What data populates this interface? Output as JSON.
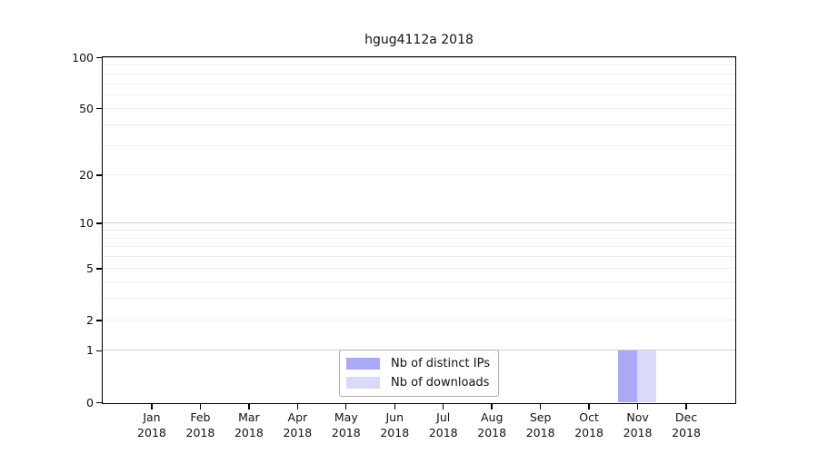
{
  "chart_data": {
    "type": "bar",
    "title": "hgug4112a 2018",
    "categories": [
      "Jan 2018",
      "Feb 2018",
      "Mar 2018",
      "Apr 2018",
      "May 2018",
      "Jun 2018",
      "Jul 2018",
      "Aug 2018",
      "Sep 2018",
      "Oct 2018",
      "Nov 2018",
      "Dec 2018"
    ],
    "series": [
      {
        "name": "Nb of distinct IPs",
        "color": "#a9a9f5",
        "values": [
          0,
          0,
          0,
          0,
          0,
          0,
          0,
          0,
          0,
          0,
          1,
          0
        ]
      },
      {
        "name": "Nb of downloads",
        "color": "#d9d9f8",
        "values": [
          0,
          0,
          0,
          0,
          0,
          0,
          0,
          0,
          0,
          0,
          1,
          0
        ]
      }
    ],
    "xlabel": "",
    "ylabel": "",
    "yscale": "log1p",
    "ylim": [
      0,
      100
    ],
    "yticks": [
      0,
      1,
      2,
      5,
      10,
      20,
      50,
      100
    ],
    "major_gridlines": [
      1,
      10,
      100
    ],
    "minor_gridlines": [
      2,
      3,
      4,
      5,
      6,
      7,
      8,
      9,
      20,
      30,
      40,
      50,
      60,
      70,
      80,
      90
    ],
    "grid": "horizontal",
    "legend_position": "lower center",
    "frame_color": "#000000",
    "background_color": "#ffffff"
  }
}
